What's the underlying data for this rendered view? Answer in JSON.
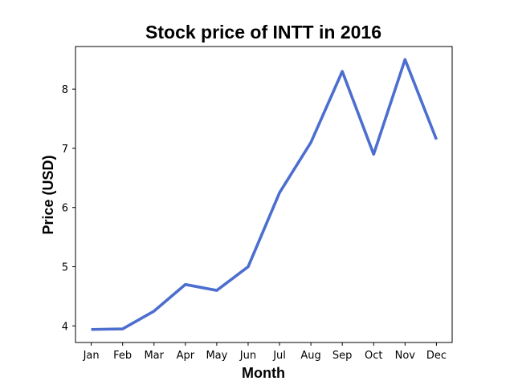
{
  "chart_data": {
    "type": "line",
    "title": "Stock price of INTT in 2016",
    "xlabel": "Month",
    "ylabel": "Price (USD)",
    "categories": [
      "Jan",
      "Feb",
      "Mar",
      "Apr",
      "May",
      "Jun",
      "Jul",
      "Aug",
      "Sep",
      "Oct",
      "Nov",
      "Dec"
    ],
    "series": [
      {
        "values": [
          3.94,
          3.95,
          4.25,
          4.7,
          4.6,
          5.0,
          6.25,
          7.1,
          8.3,
          6.9,
          8.5,
          7.15
        ],
        "color": "#4c6ecf"
      }
    ],
    "yticks": [
      4,
      5,
      6,
      7,
      8
    ],
    "ylim": [
      3.72,
      8.72
    ],
    "grid": false,
    "legend": "none"
  }
}
